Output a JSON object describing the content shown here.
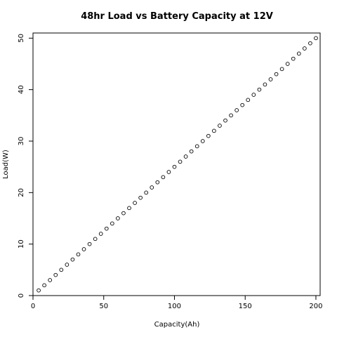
{
  "chart_data": {
    "type": "scatter",
    "title": "48hr Load vs Battery Capacity at 12V",
    "xlabel": "Capacity(Ah)",
    "ylabel": "Load(W)",
    "xlim": [
      0,
      203
    ],
    "ylim": [
      0,
      51
    ],
    "xticks": [
      0,
      50,
      100,
      150,
      200
    ],
    "yticks": [
      0,
      10,
      20,
      30,
      40,
      50
    ],
    "grid": false,
    "legend": "none",
    "marker": "open-circle",
    "color": "#000000",
    "x": [
      4,
      8,
      12,
      16,
      20,
      24,
      28,
      32,
      36,
      40,
      44,
      48,
      52,
      56,
      60,
      64,
      68,
      72,
      76,
      80,
      84,
      88,
      92,
      96,
      100,
      104,
      108,
      112,
      116,
      120,
      124,
      128,
      132,
      136,
      140,
      144,
      148,
      152,
      156,
      160,
      164,
      168,
      172,
      176,
      180,
      184,
      188,
      192,
      196,
      200
    ],
    "y": [
      1,
      2,
      3,
      4,
      5,
      6,
      7,
      8,
      9,
      10,
      11,
      12,
      13,
      14,
      15,
      16,
      17,
      18,
      19,
      20,
      21,
      22,
      23,
      24,
      25,
      26,
      27,
      28,
      29,
      30,
      31,
      32,
      33,
      34,
      35,
      36,
      37,
      38,
      39,
      40,
      41,
      42,
      43,
      44,
      45,
      46,
      47,
      48,
      49,
      50
    ]
  }
}
